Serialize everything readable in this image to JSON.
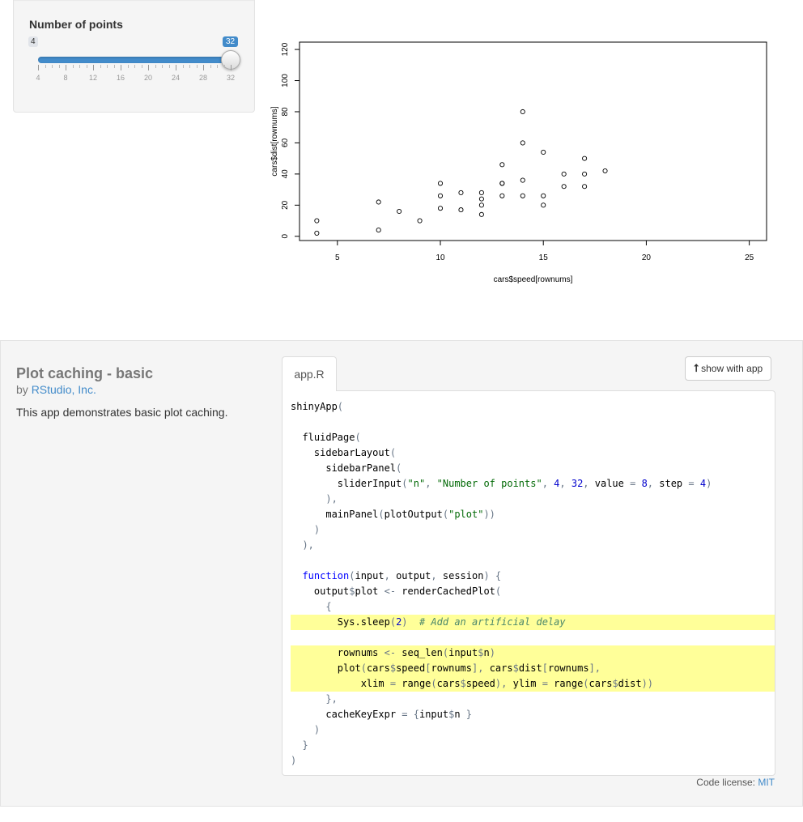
{
  "sidebar": {
    "slider": {
      "label": "Number of points",
      "min": 4,
      "max": 32,
      "value": 32,
      "step": 4,
      "min_badge": "4",
      "value_badge": "32",
      "ticks": [
        "4",
        "8",
        "12",
        "16",
        "20",
        "24",
        "28",
        "32"
      ]
    }
  },
  "chart_data": {
    "type": "scatter",
    "xlabel": "cars$speed[rownums]",
    "ylabel": "cars$dist[rownums]",
    "xlim": [
      4,
      25
    ],
    "ylim": [
      2,
      120
    ],
    "xticks": [
      "5",
      "10",
      "15",
      "20",
      "25"
    ],
    "yticks": [
      "0",
      "20",
      "40",
      "60",
      "80",
      "100",
      "120"
    ],
    "points": [
      [
        4,
        2
      ],
      [
        4,
        10
      ],
      [
        7,
        4
      ],
      [
        7,
        22
      ],
      [
        8,
        16
      ],
      [
        9,
        10
      ],
      [
        10,
        18
      ],
      [
        10,
        26
      ],
      [
        10,
        34
      ],
      [
        11,
        17
      ],
      [
        11,
        28
      ],
      [
        12,
        14
      ],
      [
        12,
        20
      ],
      [
        12,
        24
      ],
      [
        12,
        28
      ],
      [
        13,
        26
      ],
      [
        13,
        34
      ],
      [
        13,
        34
      ],
      [
        13,
        46
      ],
      [
        14,
        26
      ],
      [
        14,
        36
      ],
      [
        14,
        60
      ],
      [
        14,
        80
      ],
      [
        15,
        20
      ],
      [
        15,
        26
      ],
      [
        15,
        54
      ],
      [
        16,
        32
      ],
      [
        16,
        40
      ],
      [
        17,
        32
      ],
      [
        17,
        40
      ],
      [
        17,
        50
      ],
      [
        18,
        42
      ]
    ]
  },
  "showcase": {
    "title": "Plot caching - basic",
    "by": "by",
    "author": "RStudio, Inc.",
    "description": "This app demonstrates basic plot caching.",
    "tab_label": "app.R",
    "show_with_app": "show with app",
    "license_prefix": "Code license: ",
    "license_link": "MIT"
  },
  "code": [
    {
      "hl": false,
      "t": [
        [
          "",
          "shinyApp"
        ],
        [
          "punc",
          "("
        ]
      ]
    },
    {
      "hl": false,
      "t": []
    },
    {
      "hl": false,
      "t": [
        [
          "",
          "  fluidPage"
        ],
        [
          "punc",
          "("
        ]
      ]
    },
    {
      "hl": false,
      "t": [
        [
          "",
          "    sidebarLayout"
        ],
        [
          "punc",
          "("
        ]
      ]
    },
    {
      "hl": false,
      "t": [
        [
          "",
          "      sidebarPanel"
        ],
        [
          "punc",
          "("
        ]
      ]
    },
    {
      "hl": false,
      "t": [
        [
          "",
          "        sliderInput"
        ],
        [
          "punc",
          "("
        ],
        [
          "str",
          "\"n\""
        ],
        [
          "punc",
          ", "
        ],
        [
          "str",
          "\"Number of points\""
        ],
        [
          "punc",
          ", "
        ],
        [
          "num",
          "4"
        ],
        [
          "punc",
          ", "
        ],
        [
          "num",
          "32"
        ],
        [
          "punc",
          ", "
        ],
        [
          "",
          "value "
        ],
        [
          "punc",
          "= "
        ],
        [
          "num",
          "8"
        ],
        [
          "punc",
          ", "
        ],
        [
          "",
          "step "
        ],
        [
          "punc",
          "= "
        ],
        [
          "num",
          "4"
        ],
        [
          "punc",
          ")"
        ]
      ]
    },
    {
      "hl": false,
      "t": [
        [
          "punc",
          "      ),"
        ]
      ]
    },
    {
      "hl": false,
      "t": [
        [
          "",
          "      mainPanel"
        ],
        [
          "punc",
          "("
        ],
        [
          "",
          "plotOutput"
        ],
        [
          "punc",
          "("
        ],
        [
          "str",
          "\"plot\""
        ],
        [
          "punc",
          "))"
        ]
      ]
    },
    {
      "hl": false,
      "t": [
        [
          "punc",
          "    )"
        ]
      ]
    },
    {
      "hl": false,
      "t": [
        [
          "punc",
          "  ),"
        ]
      ]
    },
    {
      "hl": false,
      "t": []
    },
    {
      "hl": false,
      "t": [
        [
          "kw",
          "  function"
        ],
        [
          "punc",
          "("
        ],
        [
          "",
          "input"
        ],
        [
          "punc",
          ", "
        ],
        [
          "",
          "output"
        ],
        [
          "punc",
          ", "
        ],
        [
          "",
          "session"
        ],
        [
          "punc",
          ") {"
        ]
      ]
    },
    {
      "hl": false,
      "t": [
        [
          "",
          "    output"
        ],
        [
          "punc",
          "$"
        ],
        [
          "",
          "plot "
        ],
        [
          "punc",
          "<- "
        ],
        [
          "",
          "renderCachedPlot"
        ],
        [
          "punc",
          "("
        ]
      ]
    },
    {
      "hl": false,
      "t": [
        [
          "punc",
          "      {"
        ]
      ]
    },
    {
      "hl": true,
      "t": [
        [
          "",
          "        Sys.sleep"
        ],
        [
          "punc",
          "("
        ],
        [
          "num",
          "2"
        ],
        [
          "punc",
          ")  "
        ],
        [
          "cmt",
          "# Add an artificial delay"
        ]
      ]
    },
    {
      "hl": false,
      "t": []
    },
    {
      "hl": true,
      "t": [
        [
          "",
          "        rownums "
        ],
        [
          "punc",
          "<- "
        ],
        [
          "",
          "seq_len"
        ],
        [
          "punc",
          "("
        ],
        [
          "",
          "input"
        ],
        [
          "punc",
          "$"
        ],
        [
          "",
          "n"
        ],
        [
          "punc",
          ")"
        ]
      ]
    },
    {
      "hl": true,
      "t": [
        [
          "",
          "        plot"
        ],
        [
          "punc",
          "("
        ],
        [
          "",
          "cars"
        ],
        [
          "punc",
          "$"
        ],
        [
          "",
          "speed"
        ],
        [
          "punc",
          "["
        ],
        [
          "",
          "rownums"
        ],
        [
          "punc",
          "], "
        ],
        [
          "",
          "cars"
        ],
        [
          "punc",
          "$"
        ],
        [
          "",
          "dist"
        ],
        [
          "punc",
          "["
        ],
        [
          "",
          "rownums"
        ],
        [
          "punc",
          "],"
        ]
      ]
    },
    {
      "hl": true,
      "t": [
        [
          "",
          "            xlim "
        ],
        [
          "punc",
          "= "
        ],
        [
          "",
          "range"
        ],
        [
          "punc",
          "("
        ],
        [
          "",
          "cars"
        ],
        [
          "punc",
          "$"
        ],
        [
          "",
          "speed"
        ],
        [
          "punc",
          "), "
        ],
        [
          "",
          "ylim "
        ],
        [
          "punc",
          "= "
        ],
        [
          "",
          "range"
        ],
        [
          "punc",
          "("
        ],
        [
          "",
          "cars"
        ],
        [
          "punc",
          "$"
        ],
        [
          "",
          "dist"
        ],
        [
          "punc",
          "))"
        ]
      ]
    },
    {
      "hl": false,
      "t": [
        [
          "punc",
          "      },"
        ]
      ]
    },
    {
      "hl": false,
      "t": [
        [
          "",
          "      cacheKeyExpr "
        ],
        [
          "punc",
          "= {"
        ],
        [
          "",
          "input"
        ],
        [
          "punc",
          "$"
        ],
        [
          "",
          "n "
        ],
        [
          "punc",
          "}"
        ]
      ]
    },
    {
      "hl": false,
      "t": [
        [
          "punc",
          "    )"
        ]
      ]
    },
    {
      "hl": false,
      "t": [
        [
          "punc",
          "  }"
        ]
      ]
    },
    {
      "hl": false,
      "t": [
        [
          "punc",
          ")"
        ]
      ]
    }
  ]
}
